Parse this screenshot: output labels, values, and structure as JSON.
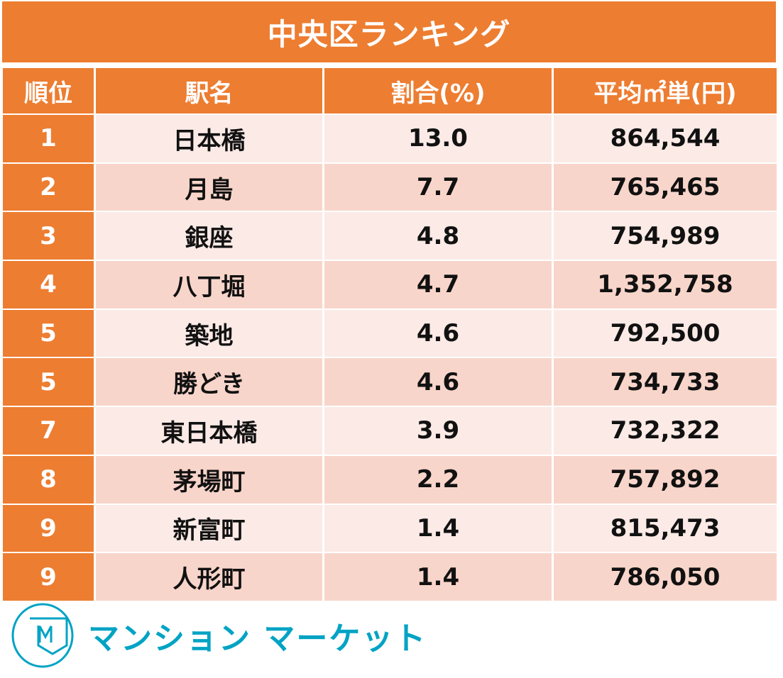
{
  "title": "中央区ランキング",
  "columns": [
    "順位",
    "駅名",
    "割合(%)",
    "平均㎡単(円)"
  ],
  "rows": [
    {
      "rank": "1",
      "station": "日本橋",
      "share": "13.0",
      "price": "864,544"
    },
    {
      "rank": "2",
      "station": "月島",
      "share": "7.7",
      "price": "765,465"
    },
    {
      "rank": "3",
      "station": "銀座",
      "share": "4.8",
      "price": "754,989"
    },
    {
      "rank": "4",
      "station": "八丁堀",
      "share": "4.7",
      "price": "1,352,758"
    },
    {
      "rank": "5",
      "station": "築地",
      "share": "4.6",
      "price": "792,500"
    },
    {
      "rank": "5",
      "station": "勝どき",
      "share": "4.6",
      "price": "734,733"
    },
    {
      "rank": "7",
      "station": "東日本橋",
      "share": "3.9",
      "price": "732,322"
    },
    {
      "rank": "8",
      "station": "茅場町",
      "share": "2.2",
      "price": "757,892"
    },
    {
      "rank": "9",
      "station": "新富町",
      "share": "1.4",
      "price": "815,473"
    },
    {
      "rank": "9",
      "station": "人形町",
      "share": "1.4",
      "price": "786,050"
    }
  ],
  "logo": {
    "text": "マンション マーケット",
    "mark": "M",
    "color": "#00A3C4"
  },
  "colors": {
    "accent": "#ED7D31",
    "row_light": "#FBEAE6",
    "row_dark": "#F8D5CA"
  }
}
